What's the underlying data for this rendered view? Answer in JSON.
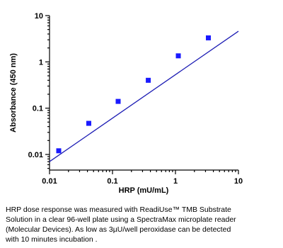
{
  "chart_data": {
    "type": "scatter",
    "x_label": "HRP (mU/mL)",
    "y_label": "Absorbance (450 nm)",
    "log_x": true,
    "log_y": true,
    "xlim": [
      0.01,
      10
    ],
    "ylim": [
      0.0046,
      10
    ],
    "xticks": [
      0.01,
      0.1,
      1,
      10
    ],
    "yticks": [
      0.01,
      0.1,
      1,
      10
    ],
    "series": [
      {
        "kind": "points",
        "color": "#1a1aff",
        "x": [
          0.014,
          0.042,
          0.123,
          0.37,
          1.11,
          3.33
        ],
        "values": [
          0.012,
          0.047,
          0.14,
          0.4,
          1.35,
          3.3
        ]
      },
      {
        "kind": "line",
        "color": "#1c1cb4",
        "x": [
          0.01,
          10
        ],
        "values": [
          0.007,
          4.6
        ]
      }
    ]
  },
  "caption": [
    "HRP dose response was measured with ReadiUse™ TMB Substrate",
    "Solution in a clear 96-well plate using a SpectraMax microplate reader",
    "(Molecular Devices). As low as 3µU/well peroxidase can be detected",
    "with 10 minutes incubation ."
  ]
}
